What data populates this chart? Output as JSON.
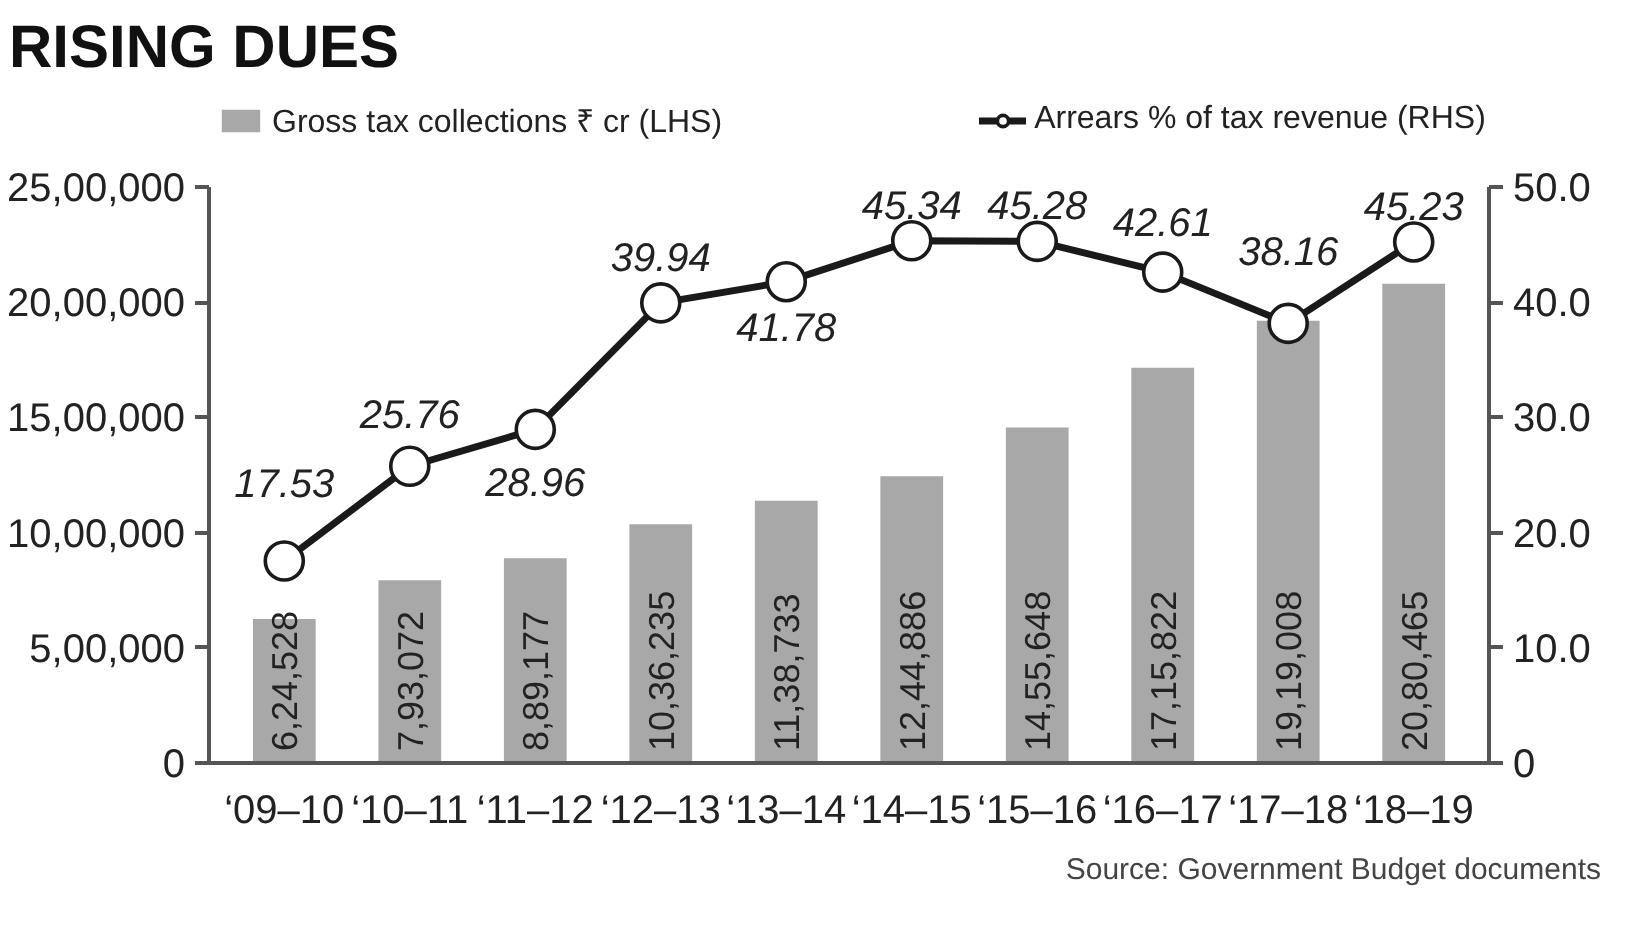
{
  "chart_data": {
    "type": "bar",
    "title": "RISING DUES",
    "categories": [
      "‘09–10",
      "‘10–11",
      "‘11–12",
      "‘12–13",
      "‘13–14",
      "‘14–15",
      "‘15–16",
      "‘16–17",
      "‘17–18",
      "‘18–19"
    ],
    "series": [
      {
        "name": "Gross tax collections ₹ cr (LHS)",
        "color": "#a8a8a8",
        "values": [
          624528,
          793072,
          889177,
          1036235,
          1138733,
          1244886,
          1455648,
          1715822,
          1919008,
          2080465
        ],
        "value_labels": [
          "6,24,528",
          "7,93,072",
          "8,89,177",
          "10,36,235",
          "11,38,733",
          "12,44,886",
          "14,55,648",
          "17,15,822",
          "19,19,008",
          "20,80,465"
        ]
      },
      {
        "name": "Arrears % of tax revenue (RHS)",
        "type": "line",
        "axis": "y2",
        "color": "#1a1a1a",
        "marker": "circle",
        "line_style": "solid",
        "data_labels": true,
        "values": [
          17.53,
          25.76,
          28.96,
          39.94,
          41.78,
          45.34,
          45.28,
          42.61,
          38.16,
          45.23
        ]
      }
    ],
    "ylim": [
      0,
      2500000
    ],
    "yticks": [
      0,
      {
        "value": 500000,
        "label": "5,00,000"
      },
      {
        "value": 1000000,
        "label": "10,00,000"
      },
      {
        "value": 1500000,
        "label": "15,00,000"
      },
      {
        "value": 2000000,
        "label": "20,00,000"
      },
      {
        "value": 2500000,
        "label": "25,00,000"
      }
    ],
    "y2lim": [
      0,
      50
    ],
    "y2ticks": [
      0,
      {
        "value": 10,
        "label": "10.0"
      },
      {
        "value": 20,
        "label": "20.0"
      },
      {
        "value": 30,
        "label": "30.0"
      },
      {
        "value": 40,
        "label": "40.0"
      },
      {
        "value": 50,
        "label": "50.0"
      }
    ],
    "grid": false,
    "legend": "top",
    "annotations": [
      "Source: Government Budget documents"
    ]
  }
}
